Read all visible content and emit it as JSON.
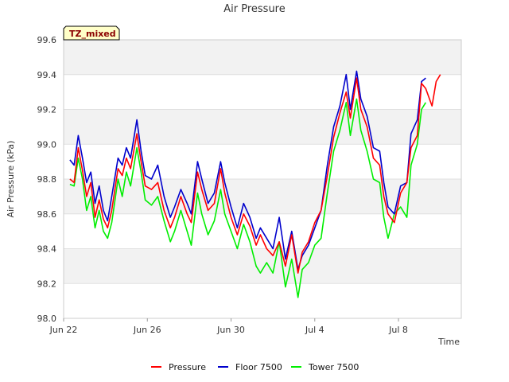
{
  "chart_data": {
    "type": "line",
    "title": "Air Pressure",
    "xlabel": "Time",
    "ylabel": "Air Pressure (kPa)",
    "badge": "TZ_mixed",
    "ylim": [
      98.0,
      99.6
    ],
    "yticks": [
      "98.0",
      "98.2",
      "98.4",
      "98.6",
      "98.8",
      "99.0",
      "99.2",
      "99.4",
      "99.6"
    ],
    "xlim_days": [
      0,
      19
    ],
    "xticks": [
      {
        "day": 0,
        "label": "Jun 22"
      },
      {
        "day": 4,
        "label": "Jun 26"
      },
      {
        "day": 8,
        "label": "Jun 30"
      },
      {
        "day": 12,
        "label": "Jul 4"
      },
      {
        "day": 16,
        "label": "Jul 8"
      }
    ],
    "legend_position": "bottom-center",
    "series": [
      {
        "name": "Pressure",
        "color": "#ff0000",
        "points": [
          [
            0.3,
            98.8
          ],
          [
            0.5,
            98.78
          ],
          [
            0.7,
            98.98
          ],
          [
            0.9,
            98.85
          ],
          [
            1.1,
            98.7
          ],
          [
            1.3,
            98.78
          ],
          [
            1.5,
            98.58
          ],
          [
            1.7,
            98.68
          ],
          [
            1.9,
            98.57
          ],
          [
            2.1,
            98.52
          ],
          [
            2.3,
            98.62
          ],
          [
            2.6,
            98.86
          ],
          [
            2.8,
            98.82
          ],
          [
            3.0,
            98.92
          ],
          [
            3.2,
            98.86
          ],
          [
            3.5,
            99.06
          ],
          [
            3.7,
            98.9
          ],
          [
            3.9,
            98.76
          ],
          [
            4.2,
            98.74
          ],
          [
            4.5,
            98.78
          ],
          [
            4.8,
            98.62
          ],
          [
            5.1,
            98.52
          ],
          [
            5.3,
            98.58
          ],
          [
            5.6,
            98.7
          ],
          [
            5.9,
            98.6
          ],
          [
            6.1,
            98.55
          ],
          [
            6.4,
            98.84
          ],
          [
            6.6,
            98.74
          ],
          [
            6.9,
            98.62
          ],
          [
            7.2,
            98.66
          ],
          [
            7.5,
            98.86
          ],
          [
            7.7,
            98.72
          ],
          [
            8.0,
            98.58
          ],
          [
            8.3,
            98.48
          ],
          [
            8.6,
            98.6
          ],
          [
            8.9,
            98.53
          ],
          [
            9.2,
            98.42
          ],
          [
            9.4,
            98.48
          ],
          [
            9.7,
            98.4
          ],
          [
            10.0,
            98.36
          ],
          [
            10.3,
            98.44
          ],
          [
            10.6,
            98.3
          ],
          [
            10.9,
            98.48
          ],
          [
            11.2,
            98.26
          ],
          [
            11.4,
            98.38
          ],
          [
            11.7,
            98.44
          ],
          [
            12.0,
            98.55
          ],
          [
            12.3,
            98.62
          ],
          [
            12.6,
            98.82
          ],
          [
            12.9,
            99.04
          ],
          [
            13.2,
            99.18
          ],
          [
            13.5,
            99.3
          ],
          [
            13.7,
            99.15
          ],
          [
            14.0,
            99.38
          ],
          [
            14.2,
            99.2
          ],
          [
            14.5,
            99.1
          ],
          [
            14.8,
            98.92
          ],
          [
            15.1,
            98.88
          ],
          [
            15.3,
            98.7
          ],
          [
            15.5,
            98.6
          ],
          [
            15.8,
            98.55
          ],
          [
            16.1,
            98.72
          ],
          [
            16.4,
            98.78
          ],
          [
            16.6,
            98.98
          ],
          [
            16.9,
            99.05
          ],
          [
            17.1,
            99.35
          ],
          [
            17.3,
            99.32
          ],
          [
            17.6,
            99.22
          ],
          [
            17.8,
            99.36
          ],
          [
            18.0,
            99.4
          ]
        ]
      },
      {
        "name": "Floor 7500",
        "color": "#0000cc",
        "points": [
          [
            0.3,
            98.91
          ],
          [
            0.5,
            98.88
          ],
          [
            0.7,
            99.05
          ],
          [
            0.9,
            98.92
          ],
          [
            1.1,
            98.78
          ],
          [
            1.3,
            98.84
          ],
          [
            1.5,
            98.66
          ],
          [
            1.7,
            98.76
          ],
          [
            1.9,
            98.62
          ],
          [
            2.1,
            98.56
          ],
          [
            2.3,
            98.7
          ],
          [
            2.6,
            98.92
          ],
          [
            2.8,
            98.88
          ],
          [
            3.0,
            98.98
          ],
          [
            3.2,
            98.92
          ],
          [
            3.5,
            99.14
          ],
          [
            3.7,
            98.96
          ],
          [
            3.9,
            98.82
          ],
          [
            4.2,
            98.8
          ],
          [
            4.5,
            98.88
          ],
          [
            4.8,
            98.7
          ],
          [
            5.1,
            98.58
          ],
          [
            5.3,
            98.64
          ],
          [
            5.6,
            98.74
          ],
          [
            5.9,
            98.66
          ],
          [
            6.1,
            98.6
          ],
          [
            6.4,
            98.9
          ],
          [
            6.6,
            98.8
          ],
          [
            6.9,
            98.66
          ],
          [
            7.2,
            98.72
          ],
          [
            7.5,
            98.9
          ],
          [
            7.7,
            98.78
          ],
          [
            8.0,
            98.64
          ],
          [
            8.3,
            98.52
          ],
          [
            8.6,
            98.66
          ],
          [
            8.9,
            98.58
          ],
          [
            9.2,
            98.46
          ],
          [
            9.4,
            98.52
          ],
          [
            9.7,
            98.46
          ],
          [
            10.0,
            98.4
          ],
          [
            10.3,
            98.58
          ],
          [
            10.6,
            98.34
          ],
          [
            10.9,
            98.5
          ],
          [
            11.2,
            98.28
          ],
          [
            11.4,
            98.36
          ],
          [
            11.7,
            98.42
          ],
          [
            12.0,
            98.52
          ],
          [
            12.3,
            98.62
          ],
          [
            12.6,
            98.88
          ],
          [
            12.9,
            99.1
          ],
          [
            13.2,
            99.22
          ],
          [
            13.5,
            99.4
          ],
          [
            13.7,
            99.2
          ],
          [
            14.0,
            99.42
          ],
          [
            14.2,
            99.26
          ],
          [
            14.5,
            99.16
          ],
          [
            14.8,
            98.98
          ],
          [
            15.1,
            98.96
          ],
          [
            15.3,
            98.78
          ],
          [
            15.5,
            98.64
          ],
          [
            15.8,
            98.6
          ],
          [
            16.1,
            98.76
          ],
          [
            16.4,
            98.78
          ],
          [
            16.6,
            99.06
          ],
          [
            16.9,
            99.14
          ],
          [
            17.1,
            99.36
          ],
          [
            17.3,
            99.38
          ]
        ]
      },
      {
        "name": "Tower 7500",
        "color": "#00ee00",
        "points": [
          [
            0.3,
            98.77
          ],
          [
            0.5,
            98.76
          ],
          [
            0.7,
            98.92
          ],
          [
            0.9,
            98.8
          ],
          [
            1.1,
            98.62
          ],
          [
            1.3,
            98.7
          ],
          [
            1.5,
            98.52
          ],
          [
            1.7,
            98.62
          ],
          [
            1.9,
            98.5
          ],
          [
            2.1,
            98.46
          ],
          [
            2.3,
            98.55
          ],
          [
            2.6,
            98.8
          ],
          [
            2.8,
            98.7
          ],
          [
            3.0,
            98.84
          ],
          [
            3.2,
            98.76
          ],
          [
            3.5,
            98.98
          ],
          [
            3.7,
            98.84
          ],
          [
            3.9,
            98.68
          ],
          [
            4.2,
            98.65
          ],
          [
            4.5,
            98.7
          ],
          [
            4.8,
            98.56
          ],
          [
            5.1,
            98.44
          ],
          [
            5.3,
            98.5
          ],
          [
            5.6,
            98.62
          ],
          [
            5.9,
            98.5
          ],
          [
            6.1,
            98.42
          ],
          [
            6.4,
            98.72
          ],
          [
            6.6,
            98.6
          ],
          [
            6.9,
            98.48
          ],
          [
            7.2,
            98.56
          ],
          [
            7.5,
            98.74
          ],
          [
            7.7,
            98.6
          ],
          [
            8.0,
            98.5
          ],
          [
            8.3,
            98.4
          ],
          [
            8.6,
            98.54
          ],
          [
            8.9,
            98.44
          ],
          [
            9.2,
            98.3
          ],
          [
            9.4,
            98.26
          ],
          [
            9.7,
            98.32
          ],
          [
            10.0,
            98.26
          ],
          [
            10.3,
            98.44
          ],
          [
            10.6,
            98.18
          ],
          [
            10.9,
            98.34
          ],
          [
            11.2,
            98.12
          ],
          [
            11.4,
            98.28
          ],
          [
            11.7,
            98.32
          ],
          [
            12.0,
            98.42
          ],
          [
            12.3,
            98.46
          ],
          [
            12.6,
            98.72
          ],
          [
            12.9,
            98.96
          ],
          [
            13.2,
            99.08
          ],
          [
            13.5,
            99.24
          ],
          [
            13.7,
            99.05
          ],
          [
            14.0,
            99.26
          ],
          [
            14.2,
            99.08
          ],
          [
            14.5,
            98.96
          ],
          [
            14.8,
            98.8
          ],
          [
            15.1,
            98.78
          ],
          [
            15.3,
            98.58
          ],
          [
            15.5,
            98.46
          ],
          [
            15.8,
            98.6
          ],
          [
            16.1,
            98.64
          ],
          [
            16.4,
            98.58
          ],
          [
            16.6,
            98.88
          ],
          [
            16.9,
            99.0
          ],
          [
            17.1,
            99.2
          ],
          [
            17.3,
            99.24
          ]
        ]
      }
    ]
  }
}
